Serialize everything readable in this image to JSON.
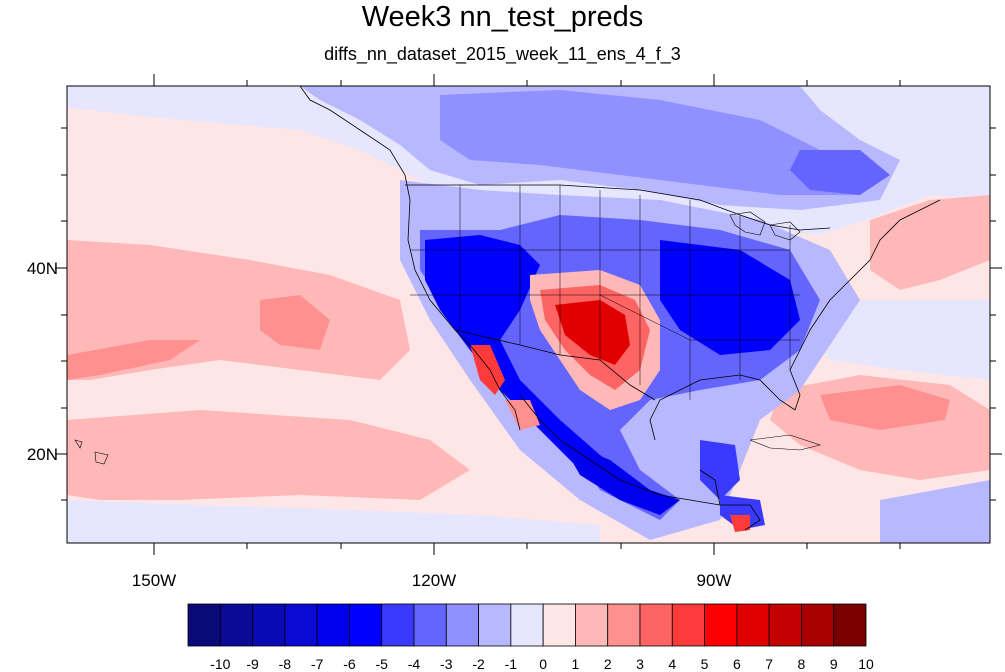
{
  "title": "Week3 nn_test_preds",
  "subtitle": "diffs_nn_dataset_2015_week_11_ens_4_f_3",
  "axes": {
    "lon_ticks": [
      "150W",
      "120W",
      "90W"
    ],
    "lat_ticks": [
      "40N",
      "20N"
    ]
  },
  "colorbar": {
    "labels": [
      "-10",
      "-9",
      "-8",
      "-7",
      "-6",
      "-5",
      "-4",
      "-3",
      "-2",
      "-1",
      "0",
      "1",
      "2",
      "3",
      "4",
      "5",
      "6",
      "7",
      "8",
      "9",
      "10"
    ],
    "colors": [
      "#0a0a78",
      "#0a0a96",
      "#0a0ab4",
      "#0a0ad2",
      "#0000ee",
      "#0000ff",
      "#3a3aff",
      "#6464ff",
      "#9090ff",
      "#b8b8ff",
      "#e6e6ff",
      "#ffe6e6",
      "#ffb8b8",
      "#ff9090",
      "#ff6464",
      "#ff3a3a",
      "#ff0000",
      "#e00000",
      "#c40000",
      "#a80000",
      "#7a0000"
    ]
  },
  "map": {
    "ocean_color": "#ffe6e6",
    "blue_palette": [
      "#e6e6ff",
      "#b8b8ff",
      "#9090ff",
      "#6464ff",
      "#3a3aff",
      "#0000ff",
      "#0000ee"
    ],
    "red_palette": [
      "#ffb8b8",
      "#ff9090",
      "#ff6464",
      "#ff3a3a",
      "#ff0000",
      "#e00000"
    ],
    "border_color": "#000000"
  }
}
